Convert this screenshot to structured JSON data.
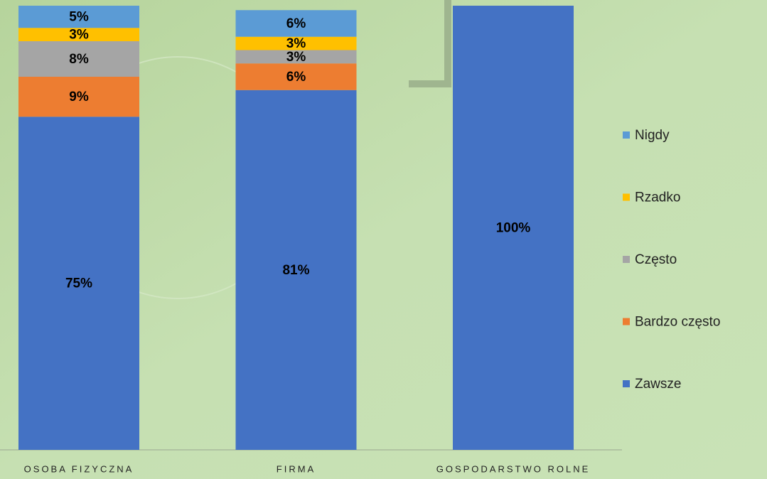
{
  "chart_data": {
    "type": "stacked_bar",
    "categories": [
      "OSOBA FIZYCZNA",
      "FIRMA",
      "GOSPODARSTWO ROLNE"
    ],
    "series": [
      {
        "name": "Zawsze",
        "color": "#4472c4",
        "values": [
          75,
          81,
          100
        ],
        "value_labels": [
          "75%",
          "81%",
          "100%"
        ]
      },
      {
        "name": "Bardzo często",
        "color": "#ed7d31",
        "values": [
          9,
          6,
          0
        ],
        "value_labels": [
          "9%",
          "6%",
          null
        ]
      },
      {
        "name": "Często",
        "color": "#a5a5a5",
        "values": [
          8,
          3,
          0
        ],
        "value_labels": [
          "8%",
          "3%",
          null
        ]
      },
      {
        "name": "Rzadko",
        "color": "#ffc000",
        "values": [
          3,
          3,
          0
        ],
        "value_labels": [
          "3%",
          "3%",
          null
        ]
      },
      {
        "name": "Nigdy",
        "color": "#5b9bd5",
        "values": [
          5,
          6,
          0
        ],
        "value_labels": [
          "5%",
          "6%",
          null
        ]
      }
    ],
    "ylim": [
      0,
      100
    ],
    "legend": "right"
  }
}
